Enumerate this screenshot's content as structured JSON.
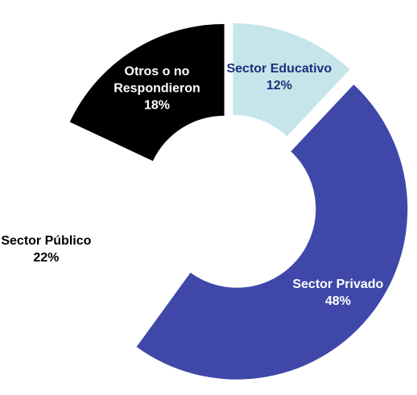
{
  "chart_data": {
    "type": "donut",
    "categories": [
      "Sector Educativo",
      "Sector Privado",
      "Sector Público",
      "Otros o no Respondieron"
    ],
    "values": [
      12,
      48,
      22,
      18
    ],
    "value_labels": [
      "12%",
      "48%",
      "22%",
      "18%"
    ],
    "colors": [
      "#c5e5ea",
      "#3f48a8",
      "#ffffff",
      "#000000"
    ],
    "label_colors": [
      "#1f2f7a",
      "#ffffff",
      "#000000",
      "#ffffff"
    ]
  }
}
